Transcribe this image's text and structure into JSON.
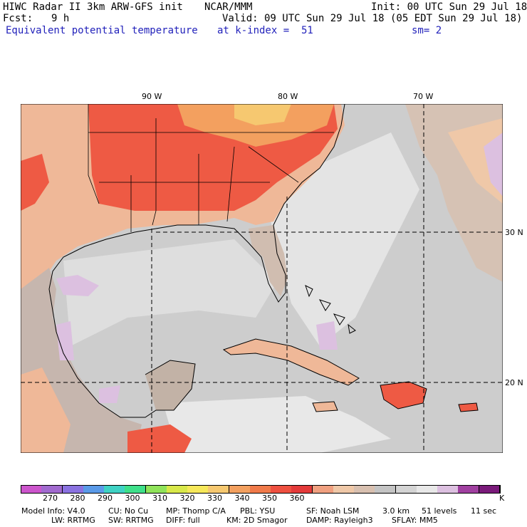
{
  "header": {
    "line1_left": "HIWC Radar II 3km ARW-GFS init",
    "line1_mid": "NCAR/MMM",
    "line1_right": "Init: 00 UTC Sun 29 Jul 18",
    "fcst_label": "Fcst:",
    "fcst_value": "9 h",
    "valid": "Valid: 09 UTC Sun 29 Jul 18 (05 EDT Sun 29 Jul 18)",
    "field_name": "Equivalent potential temperature",
    "level": "at k-index =  51",
    "smooth": "sm= 2"
  },
  "map": {
    "lon_labels": [
      "90 W",
      "80 W",
      "70 W"
    ],
    "lat_labels": [
      "30 N",
      "20 N"
    ]
  },
  "colorbar": {
    "unit": "K",
    "labels": [
      "270",
      "280",
      "290",
      "300",
      "310",
      "320",
      "330",
      "340",
      "350",
      "360"
    ],
    "colors": [
      "#cc55cc",
      "#a16acf",
      "#8a72e0",
      "#5a9ae8",
      "#3fd2c4",
      "#3ee08a",
      "#8fe35a",
      "#d8e84a",
      "#f6e85a",
      "#f6c870",
      "#f3a05f",
      "#f07a4a",
      "#ee5040",
      "#e33a3a",
      "#f0a080",
      "#efc8a8",
      "#d8c0b0",
      "#c4c4c4",
      "#d4d4d4",
      "#e8e8e8",
      "#dcc0e0",
      "#a040a0",
      "#7a1a7a"
    ]
  },
  "footer": {
    "model_info": "Model Info: V4.0",
    "cu": "CU: No Cu",
    "mp": "MP: Thomp C/A",
    "pbl": "PBL: YSU",
    "sf": "SF: Noah LSM",
    "res": "3.0 km",
    "levels": "51 levels",
    "sec": "11 sec",
    "lw": "LW: RRTMG",
    "sw": "SW: RRTMG",
    "diff": "DIFF: full",
    "km": "KM: 2D Smagor",
    "damp": "DAMP: Rayleigh3",
    "sflay": "SFLAY: MM5"
  }
}
